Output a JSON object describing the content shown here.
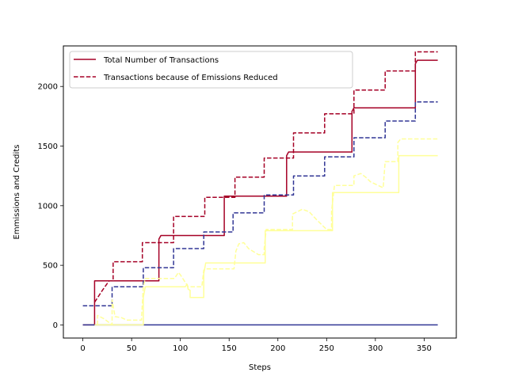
{
  "chart_data": {
    "type": "line",
    "title": "",
    "xlabel": "Steps",
    "ylabel": "Emmissions and Credits",
    "xlim": [
      -20,
      383
    ],
    "ylim": [
      -110,
      2340
    ],
    "xticks": [
      0,
      50,
      100,
      150,
      200,
      250,
      300,
      350
    ],
    "yticks": [
      0,
      500,
      1000,
      1500,
      2000
    ],
    "grid": false,
    "legend_position": "top-left",
    "series": [
      {
        "name": "Total Number of Transactions",
        "color": "#a50026",
        "style": "solid",
        "points": [
          [
            0,
            0
          ],
          [
            12,
            0
          ],
          [
            12,
            370
          ],
          [
            78,
            370
          ],
          [
            78,
            720
          ],
          [
            80,
            750
          ],
          [
            145,
            750
          ],
          [
            145,
            1080
          ],
          [
            209,
            1080
          ],
          [
            209,
            1420
          ],
          [
            211,
            1450
          ],
          [
            276,
            1450
          ],
          [
            276,
            1790
          ],
          [
            278,
            1820
          ],
          [
            341,
            1820
          ],
          [
            341,
            2190
          ],
          [
            343,
            2220
          ],
          [
            364,
            2220
          ]
        ]
      },
      {
        "name": "Transactions because of Emissions Reduced",
        "color": "#a50026",
        "style": "dashed",
        "points": [
          [
            12,
            190
          ],
          [
            20,
            290
          ],
          [
            27,
            370
          ],
          [
            31,
            370
          ],
          [
            31,
            530
          ],
          [
            61,
            530
          ],
          [
            61,
            690
          ],
          [
            93,
            690
          ],
          [
            93,
            910
          ],
          [
            125,
            910
          ],
          [
            125,
            1070
          ],
          [
            156,
            1070
          ],
          [
            156,
            1240
          ],
          [
            186,
            1240
          ],
          [
            186,
            1400
          ],
          [
            216,
            1400
          ],
          [
            216,
            1610
          ],
          [
            248,
            1610
          ],
          [
            248,
            1770
          ],
          [
            278,
            1770
          ],
          [
            278,
            1970
          ],
          [
            310,
            1970
          ],
          [
            310,
            2130
          ],
          [
            341,
            2130
          ],
          [
            341,
            2290
          ],
          [
            364,
            2290
          ]
        ]
      },
      {
        "color": "#313695",
        "style": "dashed",
        "points": [
          [
            0,
            160
          ],
          [
            30,
            160
          ],
          [
            30,
            320
          ],
          [
            62,
            320
          ],
          [
            62,
            480
          ],
          [
            93,
            480
          ],
          [
            93,
            640
          ],
          [
            124,
            640
          ],
          [
            124,
            780
          ],
          [
            154,
            780
          ],
          [
            154,
            940
          ],
          [
            186,
            940
          ],
          [
            186,
            1090
          ],
          [
            216,
            1090
          ],
          [
            216,
            1250
          ],
          [
            248,
            1250
          ],
          [
            248,
            1410
          ],
          [
            278,
            1410
          ],
          [
            278,
            1570
          ],
          [
            310,
            1570
          ],
          [
            310,
            1710
          ],
          [
            341,
            1710
          ],
          [
            341,
            1870
          ],
          [
            364,
            1870
          ]
        ]
      },
      {
        "color": "#313695",
        "style": "solid",
        "points": [
          [
            0,
            0
          ],
          [
            364,
            0
          ]
        ]
      },
      {
        "color": "#ffff99",
        "style": "solid",
        "points": [
          [
            12,
            0
          ],
          [
            62,
            0
          ],
          [
            62,
            230
          ],
          [
            64,
            320
          ],
          [
            105,
            320
          ],
          [
            107,
            340
          ],
          [
            108,
            300
          ],
          [
            110,
            290
          ],
          [
            110,
            230
          ],
          [
            124,
            230
          ],
          [
            124,
            430
          ],
          [
            126,
            520
          ],
          [
            187,
            520
          ],
          [
            187,
            790
          ],
          [
            256,
            790
          ],
          [
            256,
            1110
          ],
          [
            324,
            1110
          ],
          [
            324,
            1420
          ],
          [
            364,
            1420
          ]
        ]
      },
      {
        "color": "#ffff99",
        "style": "dashed",
        "points": [
          [
            15,
            0
          ],
          [
            15,
            80
          ],
          [
            22,
            50
          ],
          [
            30,
            0
          ],
          [
            30,
            210
          ],
          [
            33,
            70
          ],
          [
            40,
            60
          ],
          [
            45,
            40
          ],
          [
            60,
            40
          ],
          [
            62,
            320
          ],
          [
            64,
            390
          ],
          [
            94,
            390
          ],
          [
            98,
            440
          ],
          [
            100,
            420
          ],
          [
            108,
            320
          ],
          [
            122,
            320
          ],
          [
            124,
            460
          ],
          [
            126,
            470
          ],
          [
            155,
            470
          ],
          [
            157,
            620
          ],
          [
            160,
            680
          ],
          [
            165,
            690
          ],
          [
            170,
            640
          ],
          [
            180,
            590
          ],
          [
            186,
            590
          ],
          [
            186,
            640
          ],
          [
            188,
            800
          ],
          [
            215,
            800
          ],
          [
            215,
            930
          ],
          [
            220,
            950
          ],
          [
            225,
            970
          ],
          [
            232,
            950
          ],
          [
            240,
            880
          ],
          [
            250,
            800
          ],
          [
            255,
            800
          ],
          [
            255,
            950
          ],
          [
            258,
            1170
          ],
          [
            278,
            1170
          ],
          [
            278,
            1250
          ],
          [
            285,
            1270
          ],
          [
            290,
            1240
          ],
          [
            295,
            1200
          ],
          [
            308,
            1150
          ],
          [
            310,
            1370
          ],
          [
            323,
            1370
          ],
          [
            323,
            1530
          ],
          [
            326,
            1560
          ],
          [
            364,
            1560
          ]
        ]
      }
    ]
  }
}
